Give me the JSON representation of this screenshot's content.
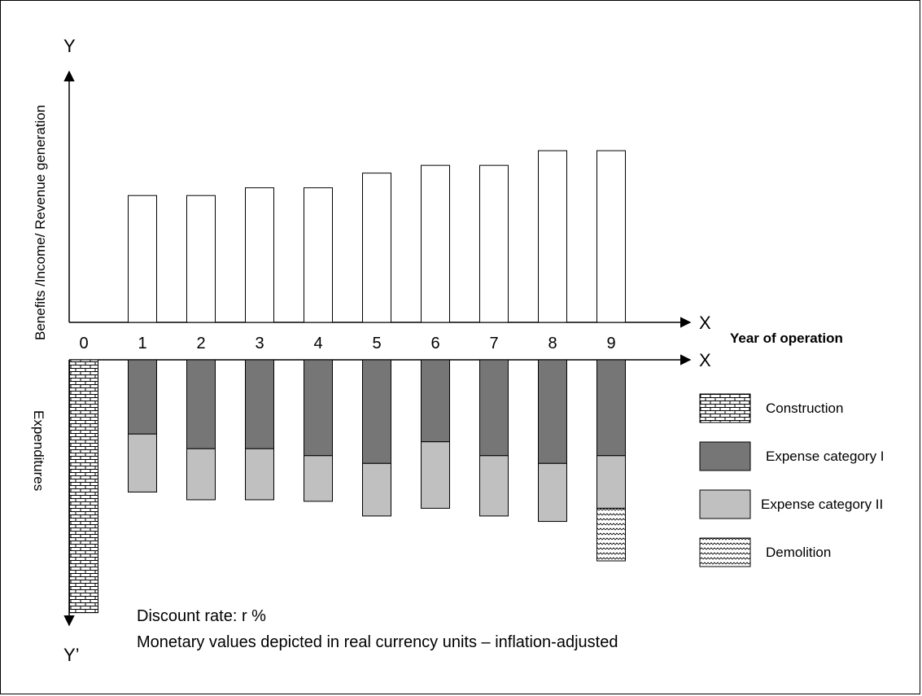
{
  "chart_data": {
    "type": "bar",
    "categories": [
      "0",
      "1",
      "2",
      "3",
      "4",
      "5",
      "6",
      "7",
      "8",
      "9"
    ],
    "axis_letters": {
      "y_top": "Y",
      "y_bottom": "Y’",
      "x_upper": "X",
      "x_lower": "X"
    },
    "ylabel_upper": "Benefits /Income/ Revenue generation",
    "ylabel_lower": "Expenditures",
    "xlabel": "Year of operation",
    "units_note": "relative heights, no numeric scale shown",
    "benefits": {
      "values": [
        0,
        16.4,
        16.4,
        17.4,
        17.4,
        19.3,
        20.3,
        20.3,
        22.2,
        22.2
      ],
      "color": "#ffffff"
    },
    "expenditures": {
      "series": [
        {
          "name": "Construction",
          "values": [
            32.7,
            0,
            0,
            0,
            0,
            0,
            0,
            0,
            0,
            0
          ],
          "fill": "brick"
        },
        {
          "name": "Expense category I",
          "values": [
            0,
            9.6,
            11.5,
            11.5,
            12.4,
            13.4,
            10.6,
            12.4,
            13.4,
            12.4
          ],
          "fill": "#767676"
        },
        {
          "name": "Expense category II",
          "values": [
            0,
            7.5,
            6.6,
            6.6,
            5.9,
            6.8,
            8.6,
            7.8,
            7.5,
            6.8
          ],
          "fill": "#c0c0c0"
        },
        {
          "name": "Demolition",
          "values": [
            0,
            0,
            0,
            0,
            0,
            0,
            0,
            0,
            0,
            6.8
          ],
          "fill": "wave"
        }
      ]
    },
    "legend": {
      "position": "right",
      "items": [
        {
          "label": "Construction",
          "pattern": "brick"
        },
        {
          "label": "Expense category I",
          "pattern": "dark"
        },
        {
          "label": "Expense category II",
          "pattern": "light"
        },
        {
          "label": "Demolition",
          "pattern": "wave"
        }
      ]
    },
    "notes": [
      "Discount rate: r %",
      "Monetary values depicted in real currency units – inflation-adjusted"
    ],
    "grid": false
  }
}
